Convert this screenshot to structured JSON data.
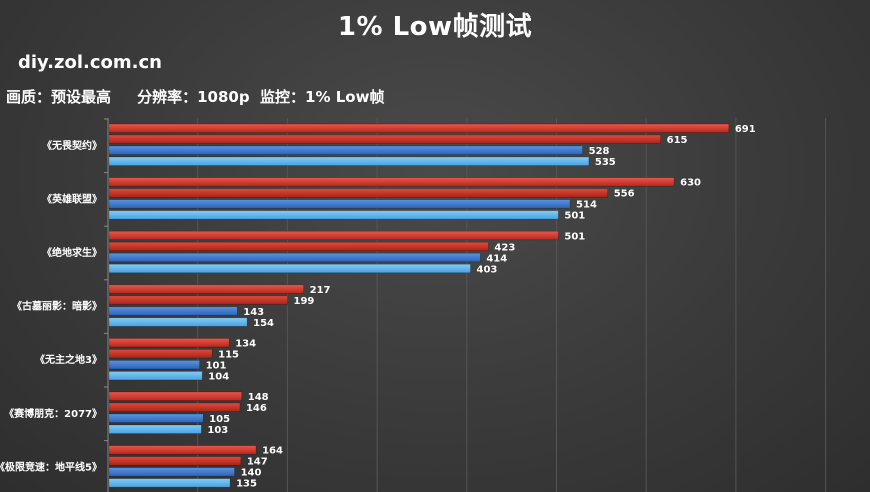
{
  "header": {
    "title": "1% Low帧测试",
    "site": "diy.zol.com.cn",
    "settings": "画质：预设最高     分辨率：1080p  监控：1% Low帧"
  },
  "chart_data": {
    "type": "bar",
    "orientation": "horizontal",
    "categories": [
      "《无畏契约》",
      "《英雄联盟》",
      "《绝地求生》",
      "《古墓丽影：暗影》",
      "《无主之地3》",
      "《赛博朋克：2077》",
      "《极限竞速：地平线5》"
    ],
    "series": [
      {
        "values": [
          691,
          630,
          501,
          217,
          134,
          148,
          164
        ],
        "color": "#d63a2c"
      },
      {
        "values": [
          615,
          556,
          423,
          199,
          115,
          146,
          147
        ],
        "color": "#cc2f22"
      },
      {
        "values": [
          528,
          514,
          414,
          143,
          101,
          105,
          140
        ],
        "color": "#3f7fd6"
      },
      {
        "values": [
          535,
          501,
          403,
          154,
          104,
          103,
          135
        ],
        "color": "#5fb6ee"
      }
    ],
    "grid": true,
    "legend": "none"
  }
}
